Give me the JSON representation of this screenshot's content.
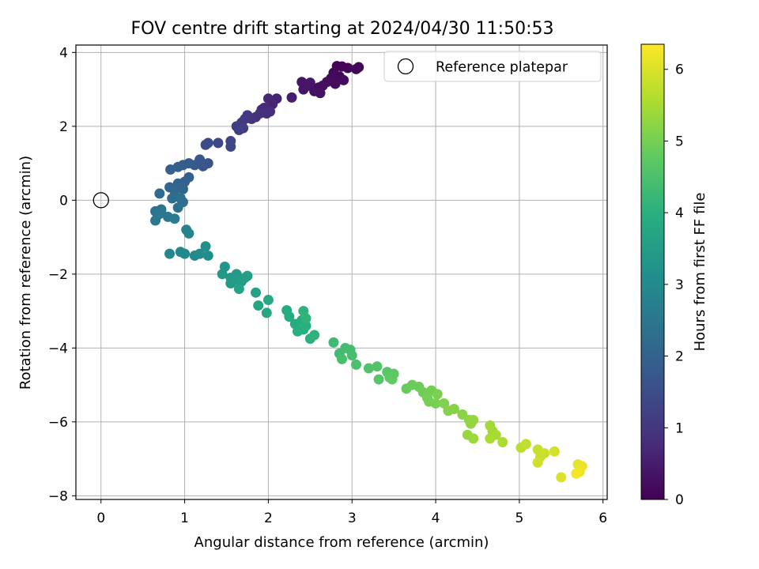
{
  "chart_data": {
    "type": "scatter",
    "title": "FOV centre drift starting at 2024/04/30 11:50:53",
    "xlabel": "Angular distance from reference (arcmin)",
    "ylabel": "Rotation from reference (arcmin)",
    "xlim": [
      -0.3,
      6.05
    ],
    "ylim": [
      -8.1,
      4.2
    ],
    "xticks": [
      0,
      1,
      2,
      3,
      4,
      5,
      6
    ],
    "yticks": [
      -8,
      -6,
      -4,
      -2,
      0,
      2,
      4
    ],
    "grid": true,
    "legend": {
      "position": "top-right",
      "entries": [
        "Reference platepar"
      ]
    },
    "reference_point": {
      "x": 0,
      "y": 0,
      "label": "Reference platepar"
    },
    "colorbar": {
      "label": "Hours from first FF file",
      "colormap": "viridis",
      "range": [
        0,
        6.35
      ],
      "ticks": [
        0,
        1,
        2,
        3,
        4,
        5,
        6
      ]
    },
    "points": [
      [
        2.82,
        3.63,
        0.05
      ],
      [
        2.88,
        3.62,
        0.06
      ],
      [
        2.95,
        3.58,
        0.08
      ],
      [
        3.05,
        3.55,
        0.1
      ],
      [
        3.08,
        3.6,
        0.09
      ],
      [
        2.78,
        3.45,
        0.12
      ],
      [
        2.85,
        3.35,
        0.15
      ],
      [
        2.75,
        3.3,
        0.16
      ],
      [
        2.9,
        3.25,
        0.18
      ],
      [
        2.8,
        3.15,
        0.2
      ],
      [
        2.7,
        3.2,
        0.22
      ],
      [
        2.65,
        3.1,
        0.24
      ],
      [
        2.6,
        3.05,
        0.26
      ],
      [
        2.55,
        2.95,
        0.28
      ],
      [
        2.62,
        2.9,
        0.3
      ],
      [
        2.48,
        3.1,
        0.33
      ],
      [
        2.4,
        3.2,
        0.36
      ],
      [
        2.42,
        3.0,
        0.38
      ],
      [
        2.5,
        3.18,
        0.4
      ],
      [
        2.28,
        2.78,
        0.5
      ],
      [
        2.1,
        2.75,
        0.62
      ],
      [
        2.05,
        2.6,
        0.66
      ],
      [
        2.0,
        2.75,
        0.68
      ],
      [
        1.95,
        2.5,
        0.72
      ],
      [
        1.92,
        2.45,
        0.76
      ],
      [
        2.02,
        2.4,
        0.8
      ],
      [
        1.98,
        2.35,
        0.84
      ],
      [
        1.85,
        2.25,
        0.88
      ],
      [
        1.9,
        2.35,
        0.9
      ],
      [
        1.8,
        2.2,
        0.95
      ],
      [
        1.75,
        2.3,
        1.0
      ],
      [
        1.72,
        2.2,
        1.05
      ],
      [
        1.68,
        2.1,
        1.08
      ],
      [
        1.62,
        2.0,
        1.12
      ],
      [
        1.7,
        1.95,
        1.15
      ],
      [
        1.65,
        1.9,
        1.18
      ],
      [
        1.55,
        1.6,
        1.3
      ],
      [
        1.55,
        1.45,
        1.34
      ],
      [
        1.4,
        1.55,
        1.38
      ],
      [
        1.28,
        1.55,
        1.42
      ],
      [
        1.25,
        1.5,
        1.46
      ],
      [
        1.28,
        1.0,
        1.6
      ],
      [
        1.22,
        0.92,
        1.65
      ],
      [
        1.18,
        1.1,
        1.7
      ],
      [
        1.12,
        0.95,
        1.75
      ],
      [
        1.05,
        1.0,
        1.8
      ],
      [
        0.98,
        0.95,
        1.84
      ],
      [
        0.92,
        0.9,
        1.88
      ],
      [
        0.83,
        0.83,
        1.92
      ],
      [
        1.05,
        0.62,
        1.97
      ],
      [
        1.0,
        0.5,
        2.0
      ],
      [
        0.92,
        0.45,
        2.05
      ],
      [
        0.98,
        0.3,
        2.08
      ],
      [
        0.82,
        0.35,
        2.12
      ],
      [
        0.88,
        0.25,
        2.15
      ],
      [
        0.7,
        0.18,
        2.2
      ],
      [
        0.85,
        0.05,
        2.25
      ],
      [
        0.95,
        0.05,
        2.27
      ],
      [
        0.98,
        -0.05,
        2.3
      ],
      [
        0.92,
        -0.2,
        2.34
      ],
      [
        0.72,
        -0.25,
        2.38
      ],
      [
        0.65,
        -0.3,
        2.42
      ],
      [
        0.68,
        -0.4,
        2.46
      ],
      [
        0.72,
        -0.35,
        2.5
      ],
      [
        0.65,
        -0.55,
        2.53
      ],
      [
        0.8,
        -0.45,
        2.56
      ],
      [
        0.88,
        -0.5,
        2.6
      ],
      [
        1.02,
        -0.8,
        2.8
      ],
      [
        1.05,
        -0.9,
        2.83
      ],
      [
        0.82,
        -1.45,
        2.9
      ],
      [
        0.95,
        -1.4,
        2.93
      ],
      [
        1.0,
        -1.45,
        2.96
      ],
      [
        1.12,
        -1.5,
        3.0
      ],
      [
        1.18,
        -1.45,
        3.03
      ],
      [
        1.25,
        -1.25,
        3.06
      ],
      [
        1.28,
        -1.5,
        3.1
      ],
      [
        1.48,
        -1.8,
        3.3
      ],
      [
        1.45,
        -2.0,
        3.33
      ],
      [
        1.55,
        -2.1,
        3.36
      ],
      [
        1.62,
        -2.0,
        3.4
      ],
      [
        1.55,
        -2.25,
        3.43
      ],
      [
        1.6,
        -2.15,
        3.46
      ],
      [
        1.68,
        -2.2,
        3.5
      ],
      [
        1.72,
        -2.1,
        3.53
      ],
      [
        1.75,
        -2.05,
        3.56
      ],
      [
        1.65,
        -2.4,
        3.6
      ],
      [
        1.85,
        -2.5,
        3.65
      ],
      [
        1.88,
        -2.85,
        3.72
      ],
      [
        1.98,
        -3.05,
        3.76
      ],
      [
        2.0,
        -2.7,
        3.8
      ],
      [
        2.22,
        -2.98,
        3.85
      ],
      [
        2.25,
        -3.15,
        3.88
      ],
      [
        2.32,
        -3.35,
        3.9
      ],
      [
        2.4,
        -3.25,
        3.93
      ],
      [
        2.35,
        -3.55,
        3.96
      ],
      [
        2.42,
        -3.5,
        3.98
      ],
      [
        2.45,
        -3.4,
        4.0
      ],
      [
        2.5,
        -3.75,
        4.03
      ],
      [
        2.55,
        -3.65,
        4.06
      ],
      [
        2.42,
        -3.0,
        4.1
      ],
      [
        2.45,
        -3.2,
        4.12
      ],
      [
        2.78,
        -3.85,
        4.3
      ],
      [
        2.85,
        -4.15,
        4.33
      ],
      [
        2.92,
        -4.0,
        4.36
      ],
      [
        2.98,
        -4.05,
        4.4
      ],
      [
        3.0,
        -4.2,
        4.43
      ],
      [
        2.88,
        -4.3,
        4.46
      ],
      [
        3.05,
        -4.45,
        4.5
      ],
      [
        3.2,
        -4.55,
        4.55
      ],
      [
        3.3,
        -4.5,
        4.6
      ],
      [
        3.32,
        -4.85,
        4.64
      ],
      [
        3.42,
        -4.65,
        4.68
      ],
      [
        3.45,
        -4.8,
        4.72
      ],
      [
        3.5,
        -4.7,
        4.75
      ],
      [
        3.48,
        -4.85,
        4.78
      ],
      [
        3.65,
        -5.1,
        4.85
      ],
      [
        3.72,
        -5.0,
        4.88
      ],
      [
        3.8,
        -5.05,
        4.9
      ],
      [
        3.85,
        -5.2,
        4.93
      ],
      [
        3.9,
        -5.35,
        4.96
      ],
      [
        3.95,
        -5.15,
        4.98
      ],
      [
        3.92,
        -5.45,
        5.0
      ],
      [
        4.0,
        -5.5,
        5.03
      ],
      [
        4.02,
        -5.25,
        5.06
      ],
      [
        4.1,
        -5.5,
        5.1
      ],
      [
        4.15,
        -5.7,
        5.13
      ],
      [
        4.22,
        -5.65,
        5.16
      ],
      [
        4.32,
        -5.8,
        5.2
      ],
      [
        4.4,
        -5.95,
        5.25
      ],
      [
        4.42,
        -6.05,
        5.28
      ],
      [
        4.45,
        -5.95,
        5.3
      ],
      [
        4.38,
        -6.35,
        5.34
      ],
      [
        4.45,
        -6.45,
        5.38
      ],
      [
        4.65,
        -6.1,
        5.45
      ],
      [
        4.68,
        -6.25,
        5.48
      ],
      [
        4.72,
        -6.35,
        5.5
      ],
      [
        4.65,
        -6.45,
        5.52
      ],
      [
        4.8,
        -6.55,
        5.56
      ],
      [
        5.02,
        -6.7,
        5.7
      ],
      [
        5.08,
        -6.6,
        5.73
      ],
      [
        5.22,
        -6.75,
        5.78
      ],
      [
        5.25,
        -6.95,
        5.82
      ],
      [
        5.3,
        -6.85,
        5.85
      ],
      [
        5.22,
        -7.1,
        5.88
      ],
      [
        5.42,
        -6.8,
        5.92
      ],
      [
        5.5,
        -7.5,
        6.0
      ],
      [
        5.7,
        -7.15,
        6.1
      ],
      [
        5.75,
        -7.2,
        6.15
      ],
      [
        5.72,
        -7.35,
        6.2
      ],
      [
        5.68,
        -7.4,
        6.25
      ]
    ]
  }
}
